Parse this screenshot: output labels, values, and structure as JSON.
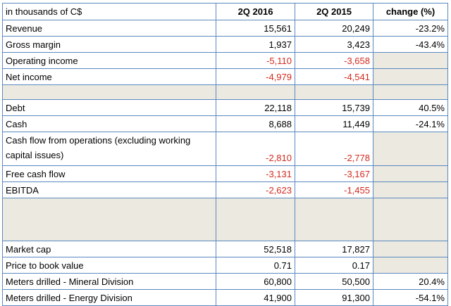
{
  "table": {
    "headers": {
      "label": "in thousands of C$",
      "col_a": "2Q 2016",
      "col_b": "2Q 2015",
      "change": "change (%)"
    },
    "rows": [
      {
        "label": "Revenue",
        "a": "15,561",
        "b": "20,249",
        "change": "-23.2%"
      },
      {
        "label": "Gross margin",
        "a": "1,937",
        "b": "3,423",
        "change": "-43.4%"
      },
      {
        "label": "Operating income",
        "a": "-5,110",
        "b": "-3,658",
        "change": ""
      },
      {
        "label": "Net income",
        "a": "-4,979",
        "b": "-4,541",
        "change": ""
      },
      {
        "label": "Debt",
        "a": "22,118",
        "b": "15,739",
        "change": "40.5%"
      },
      {
        "label": "Cash",
        "a": "8,688",
        "b": "11,449",
        "change": "-24.1%"
      },
      {
        "label": "Cash flow from operations (excluding working capital issues)",
        "a": "-2,810",
        "b": "-2,778",
        "change": ""
      },
      {
        "label": "Free cash flow",
        "a": "-3,131",
        "b": "-3,167",
        "change": ""
      },
      {
        "label": "EBITDA",
        "a": "-2,623",
        "b": "-1,455",
        "change": ""
      },
      {
        "label": "Market cap",
        "a": "52,518",
        "b": "17,827",
        "change": ""
      },
      {
        "label": "Price to book value",
        "a": "0.71",
        "b": "0.17",
        "change": ""
      },
      {
        "label": "Meters drilled - Mineral Division",
        "a": "60,800",
        "b": "50,500",
        "change": "20.4%"
      },
      {
        "label": "Meters drilled - Energy Division",
        "a": "41,900",
        "b": "91,300",
        "change": "-54.1%"
      }
    ]
  },
  "colors": {
    "border": "#5a89bf",
    "negative": "#d42a1e",
    "shade": "#ebe9e0"
  }
}
